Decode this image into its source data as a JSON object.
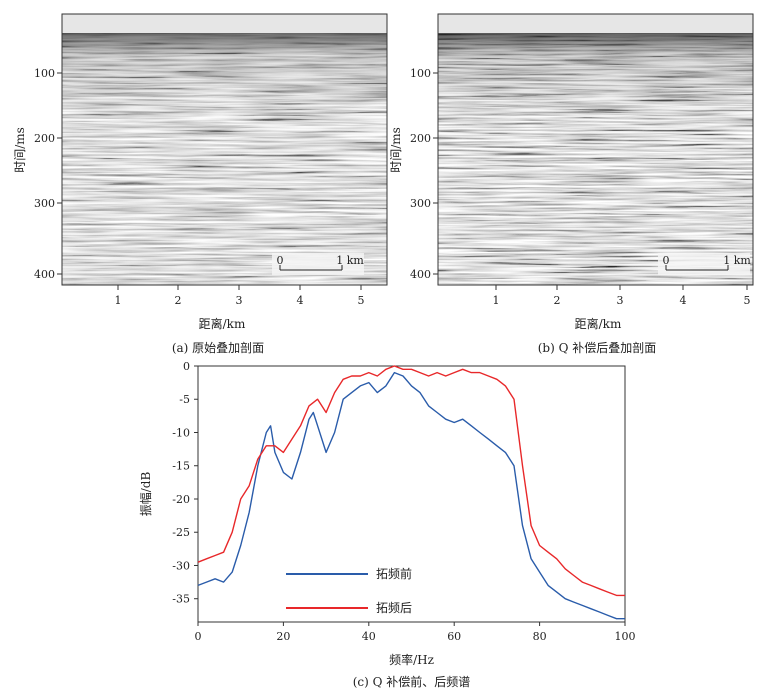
{
  "panel_a": {
    "caption": "(a) 原始叠加剖面",
    "ylabel": "时间/ms",
    "xlabel": "距离/km",
    "y_ticks": [
      "100",
      "200",
      "300",
      "400"
    ],
    "x_ticks": [
      "1",
      "2",
      "3",
      "4",
      "5"
    ],
    "scale_bar": {
      "start": "0",
      "end": "1 km"
    }
  },
  "panel_b": {
    "caption": "(b) Q 补偿后叠加剖面",
    "ylabel": "时间/ms",
    "xlabel": "距离/km",
    "y_ticks": [
      "100",
      "200",
      "300",
      "400"
    ],
    "x_ticks": [
      "1",
      "2",
      "3",
      "4",
      "5"
    ],
    "scale_bar": {
      "start": "0",
      "end": "1 km"
    }
  },
  "panel_c": {
    "caption": "(c) Q 补偿前、后频谱"
  },
  "chart_data": {
    "type": "line",
    "title": "",
    "xlabel": "频率/Hz",
    "ylabel": "振幅/dB",
    "xlim": [
      0,
      100
    ],
    "ylim": [
      -38.5,
      0
    ],
    "x_ticks": [
      0,
      20,
      40,
      60,
      80,
      100
    ],
    "y_ticks": [
      0,
      -5,
      -10,
      -15,
      -20,
      -25,
      -30,
      -35
    ],
    "grid": false,
    "legend_position": "lower-left",
    "series": [
      {
        "name": "拓频前",
        "color": "#2a5caa",
        "x": [
          0,
          2,
          4,
          6,
          8,
          10,
          12,
          14,
          16,
          17,
          18,
          20,
          22,
          24,
          26,
          27,
          28,
          30,
          32,
          34,
          36,
          38,
          40,
          42,
          44,
          46,
          48,
          50,
          52,
          54,
          56,
          58,
          60,
          62,
          64,
          66,
          68,
          70,
          72,
          74,
          76,
          78,
          80,
          82,
          84,
          86,
          88,
          90,
          92,
          94,
          96,
          98,
          100
        ],
        "y": [
          -33,
          -32.5,
          -32,
          -32.5,
          -31,
          -27,
          -22,
          -15,
          -10,
          -9,
          -13,
          -16,
          -17,
          -13,
          -8,
          -7,
          -9,
          -13,
          -10,
          -5,
          -4,
          -3,
          -2.5,
          -4,
          -3,
          -1,
          -1.5,
          -3,
          -4,
          -6,
          -7,
          -8,
          -8.5,
          -8,
          -9,
          -10,
          -11,
          -12,
          -13,
          -15,
          -24,
          -29,
          -31,
          -33,
          -34,
          -35,
          -35.5,
          -36,
          -36.5,
          -37,
          -37.5,
          -38,
          -38
        ]
      },
      {
        "name": "拓频后",
        "color": "#e8282a",
        "x": [
          0,
          2,
          4,
          6,
          8,
          10,
          12,
          14,
          16,
          18,
          20,
          22,
          24,
          26,
          28,
          30,
          32,
          34,
          36,
          38,
          40,
          42,
          44,
          46,
          48,
          50,
          52,
          54,
          56,
          58,
          60,
          62,
          64,
          66,
          68,
          70,
          72,
          74,
          76,
          78,
          80,
          82,
          84,
          86,
          88,
          90,
          92,
          94,
          96,
          98,
          100
        ],
        "y": [
          -29.5,
          -29,
          -28.5,
          -28,
          -25,
          -20,
          -18,
          -14,
          -12,
          -12,
          -13,
          -11,
          -9,
          -6,
          -5,
          -7,
          -4,
          -2,
          -1.5,
          -1.5,
          -1,
          -1.5,
          -0.5,
          0,
          -0.5,
          -0.5,
          -1,
          -1.5,
          -1,
          -1.5,
          -1,
          -0.5,
          -1,
          -1,
          -1.5,
          -2,
          -3,
          -5,
          -15,
          -24,
          -27,
          -28,
          -29,
          -30.5,
          -31.5,
          -32.5,
          -33,
          -33.5,
          -34,
          -34.5,
          -34.5
        ]
      }
    ]
  }
}
